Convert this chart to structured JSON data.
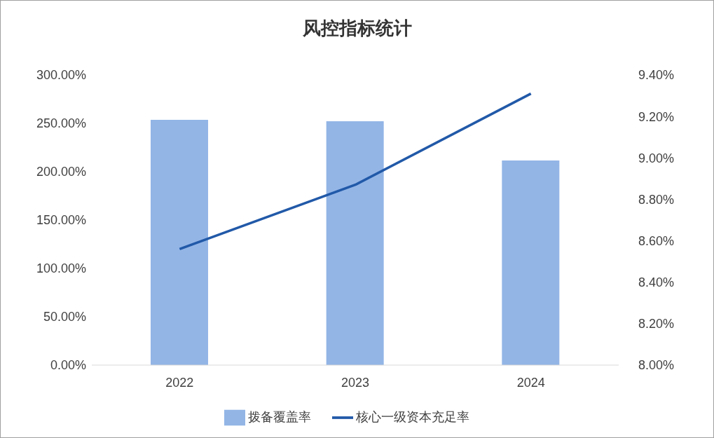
{
  "chart_data": {
    "type": "bar",
    "title": "风控指标统计",
    "categories": [
      "2022",
      "2023",
      "2024"
    ],
    "series": [
      {
        "name": "拨备覆盖率",
        "color": "#93b5e6",
        "values": [
          253.6,
          252.2,
          211.6
        ]
      },
      {
        "name": "核心一级资本充足率",
        "type": "line",
        "axis": "y2",
        "color": "#2159a8",
        "values": [
          8.56,
          8.87,
          9.31
        ]
      }
    ],
    "ylim": [
      0,
      300
    ],
    "yticks": [
      {
        "value": 0,
        "label": "0.00%"
      },
      {
        "value": 50,
        "label": "50.00%"
      },
      {
        "value": 100,
        "label": "100.00%"
      },
      {
        "value": 150,
        "label": "150.00%"
      },
      {
        "value": 200,
        "label": "200.00%"
      },
      {
        "value": 250,
        "label": "250.00%"
      },
      {
        "value": 300,
        "label": "300.00%"
      }
    ],
    "y2lim": [
      8,
      9.4
    ],
    "y2ticks": [
      {
        "value": 8,
        "label": "8.00%"
      },
      {
        "value": 8.2,
        "label": "8.20%"
      },
      {
        "value": 8.4,
        "label": "8.40%"
      },
      {
        "value": 8.6,
        "label": "8.60%"
      },
      {
        "value": 8.8,
        "label": "8.80%"
      },
      {
        "value": 9,
        "label": "9.00%"
      },
      {
        "value": 9.2,
        "label": "9.20%"
      },
      {
        "value": 9.4,
        "label": "9.40%"
      }
    ],
    "grid": false,
    "legend": "bottom",
    "marker": "none"
  }
}
